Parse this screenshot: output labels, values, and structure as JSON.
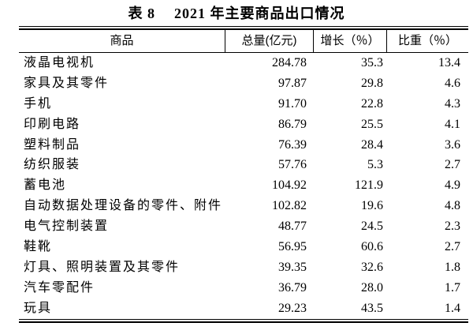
{
  "title": {
    "tag": "表 8",
    "text": "2021 年主要商品出口情况"
  },
  "table": {
    "columns": [
      {
        "label": "商品"
      },
      {
        "label": "总量(亿元)"
      },
      {
        "label": "增长（％）"
      },
      {
        "label": "比重（％）"
      }
    ],
    "rows": [
      {
        "name": "液晶电视机",
        "total": "284.78",
        "growth": "35.3",
        "share": "13.4"
      },
      {
        "name": "家具及其零件",
        "total": "97.87",
        "growth": "29.8",
        "share": "4.6"
      },
      {
        "name": "手机",
        "total": "91.70",
        "growth": "22.8",
        "share": "4.3"
      },
      {
        "name": "印刷电路",
        "total": "86.79",
        "growth": "25.5",
        "share": "4.1"
      },
      {
        "name": "塑料制品",
        "total": "76.39",
        "growth": "28.4",
        "share": "3.6"
      },
      {
        "name": "纺织服装",
        "total": "57.76",
        "growth": "5.3",
        "share": "2.7"
      },
      {
        "name": "蓄电池",
        "total": "104.92",
        "growth": "121.9",
        "share": "4.9"
      },
      {
        "name": "自动数据处理设备的零件、附件",
        "total": "102.82",
        "growth": "19.6",
        "share": "4.8"
      },
      {
        "name": "电气控制装置",
        "total": "48.77",
        "growth": "24.5",
        "share": "2.3"
      },
      {
        "name": "鞋靴",
        "total": "56.95",
        "growth": "60.6",
        "share": "2.7"
      },
      {
        "name": "灯具、照明装置及其零件",
        "total": "39.35",
        "growth": "32.6",
        "share": "1.8"
      },
      {
        "name": "汽车零配件",
        "total": "36.79",
        "growth": "28.0",
        "share": "1.7"
      },
      {
        "name": "玩具",
        "total": "29.23",
        "growth": "43.5",
        "share": "1.4"
      }
    ]
  },
  "colors": {
    "text": "#000000",
    "background": "#ffffff",
    "rule": "#000000"
  }
}
